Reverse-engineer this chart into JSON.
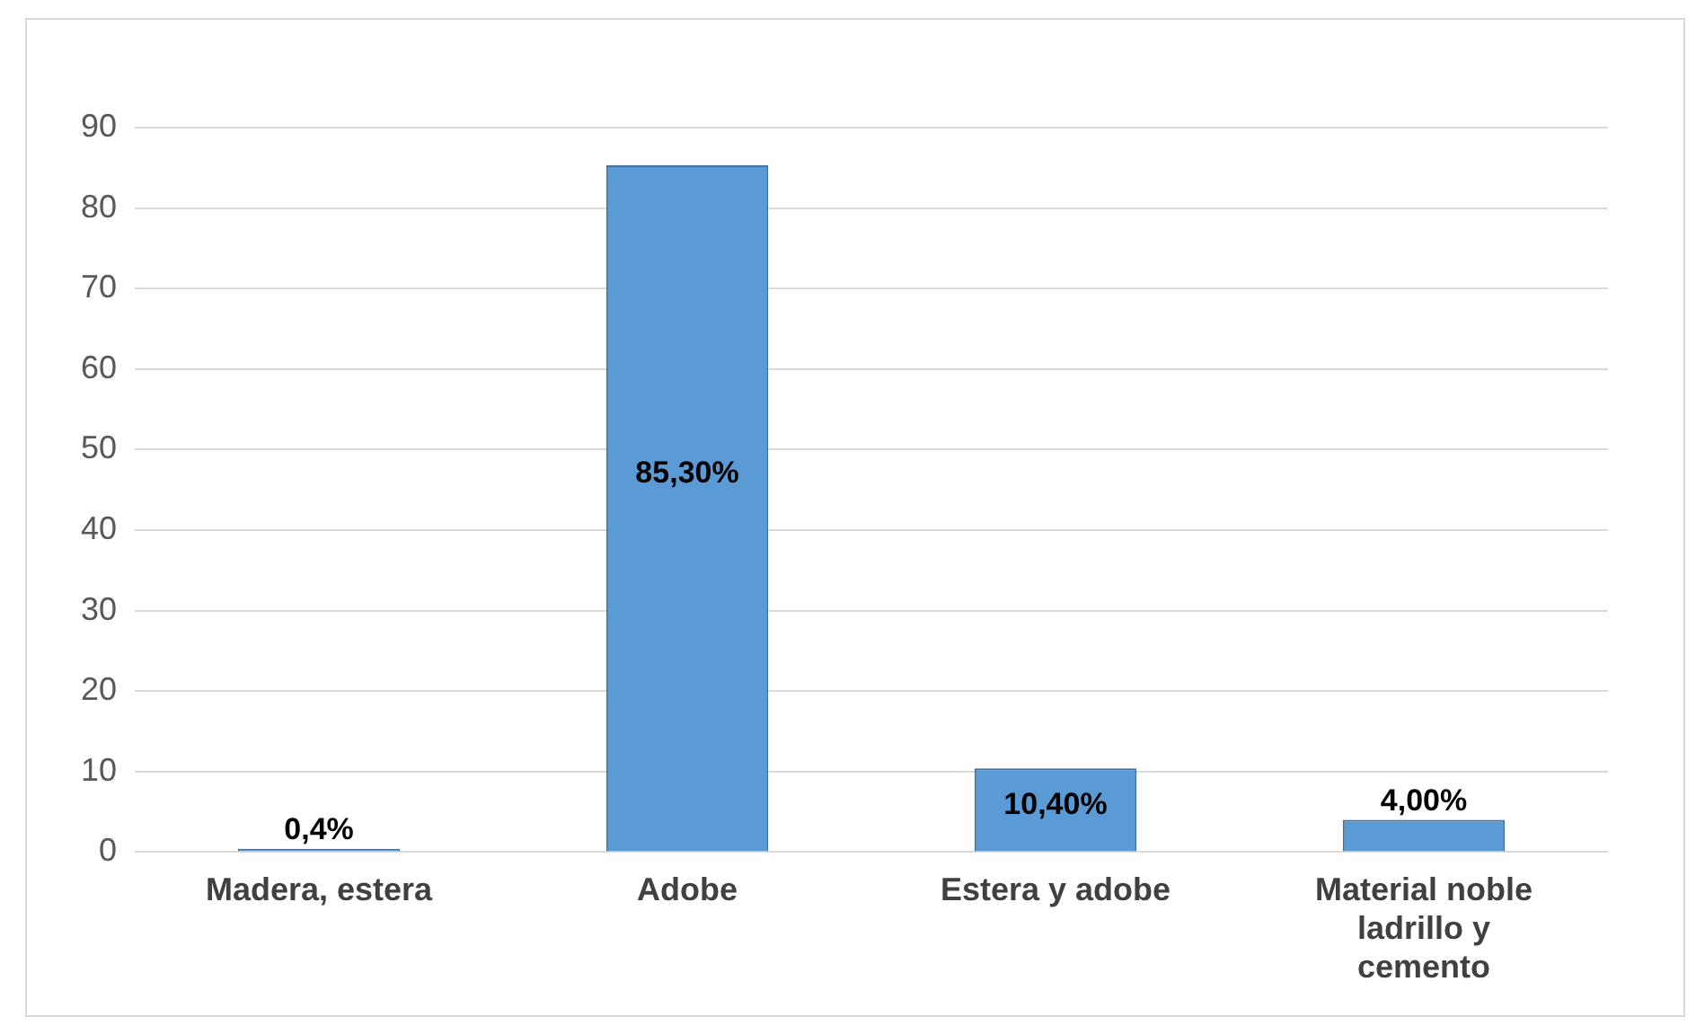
{
  "chart_data": {
    "type": "bar",
    "categories": [
      "Madera, estera",
      "Adobe",
      "Estera y adobe",
      "Material noble ladrillo y cemento"
    ],
    "values": [
      0.4,
      85.3,
      10.4,
      4.0
    ],
    "value_labels": [
      "0,4%",
      "85,30%",
      "10,40%",
      "4,00%"
    ],
    "color": "#5b9bd5",
    "ylim": [
      0,
      90
    ],
    "yticks": [
      0,
      10,
      20,
      30,
      40,
      50,
      60,
      70,
      80,
      90
    ],
    "grid": "y",
    "legend": false
  }
}
